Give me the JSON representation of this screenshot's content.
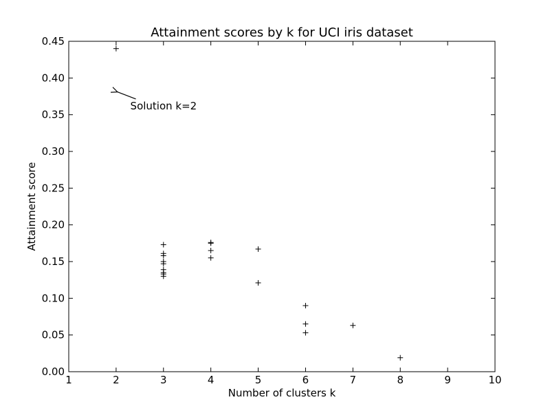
{
  "chart_data": {
    "type": "scatter",
    "title": "Attainment scores by k for UCI iris dataset",
    "xlabel": "Number of clusters k",
    "ylabel": "Attainment score",
    "xlim": [
      1,
      10
    ],
    "ylim": [
      0,
      0.45
    ],
    "x_ticks": [
      "1",
      "2",
      "3",
      "4",
      "5",
      "6",
      "7",
      "8",
      "9",
      "10"
    ],
    "y_ticks": [
      "0.00",
      "0.05",
      "0.10",
      "0.15",
      "0.20",
      "0.25",
      "0.30",
      "0.35",
      "0.40",
      "0.45"
    ],
    "marker": "+",
    "grid": false,
    "points": [
      {
        "x": 2,
        "y": 0.44
      },
      {
        "x": 3,
        "y": 0.173
      },
      {
        "x": 3,
        "y": 0.161
      },
      {
        "x": 3,
        "y": 0.158
      },
      {
        "x": 3,
        "y": 0.15
      },
      {
        "x": 3,
        "y": 0.147
      },
      {
        "x": 3,
        "y": 0.139
      },
      {
        "x": 3,
        "y": 0.135
      },
      {
        "x": 3,
        "y": 0.133
      },
      {
        "x": 3,
        "y": 0.13
      },
      {
        "x": 4,
        "y": 0.176
      },
      {
        "x": 4,
        "y": 0.175
      },
      {
        "x": 4,
        "y": 0.165
      },
      {
        "x": 4,
        "y": 0.155
      },
      {
        "x": 5,
        "y": 0.167
      },
      {
        "x": 5,
        "y": 0.121
      },
      {
        "x": 6,
        "y": 0.09
      },
      {
        "x": 6,
        "y": 0.065
      },
      {
        "x": 6,
        "y": 0.053
      },
      {
        "x": 7,
        "y": 0.063
      },
      {
        "x": 8,
        "y": 0.019
      }
    ],
    "annotations": [
      {
        "text": "Solution k=2",
        "text_x": 2.3,
        "text_y": 0.362,
        "arrow_x": 2.0,
        "arrow_y": 0.381
      }
    ]
  }
}
